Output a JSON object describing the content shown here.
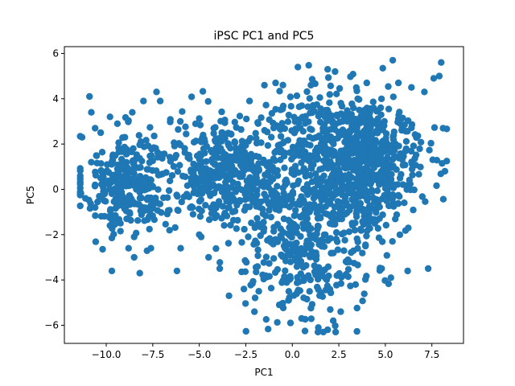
{
  "chart_data": {
    "type": "scatter",
    "title": "iPSC PC1 and PC5",
    "xlabel": "PC1",
    "ylabel": "PC5",
    "xlim": [
      -12.25,
      9.2
    ],
    "ylim": [
      -6.8,
      6.3
    ],
    "xticks": [
      -10.0,
      -7.5,
      -5.0,
      -2.5,
      0.0,
      2.5,
      5.0,
      7.5
    ],
    "xtick_labels": [
      "−10.0",
      "−7.5",
      "−5.0",
      "−2.5",
      "0.0",
      "2.5",
      "5.0",
      "7.5"
    ],
    "yticks": [
      -6,
      -4,
      -2,
      0,
      2,
      4,
      6
    ],
    "ytick_labels": [
      "−6",
      "−4",
      "−2",
      "0",
      "2",
      "4",
      "6"
    ],
    "grid": false,
    "color": "#1f77b4",
    "n_points": 2000,
    "clusters": [
      {
        "cx": -8.8,
        "cy": 0.2,
        "sx": 1.2,
        "sy": 1.1,
        "weight": 0.16
      },
      {
        "cx": -3.8,
        "cy": 1.0,
        "sx": 1.5,
        "sy": 1.1,
        "weight": 0.16
      },
      {
        "cx": -0.8,
        "cy": 0.0,
        "sx": 2.0,
        "sy": 1.3,
        "weight": 0.14
      },
      {
        "cx": 0.8,
        "cy": -3.3,
        "sx": 1.5,
        "sy": 1.3,
        "weight": 0.12
      },
      {
        "cx": 3.8,
        "cy": 0.7,
        "sx": 1.6,
        "sy": 1.4,
        "weight": 0.3
      },
      {
        "cx": 2.2,
        "cy": 2.4,
        "sx": 2.2,
        "sy": 1.2,
        "weight": 0.12
      }
    ],
    "sample_points": [
      [
        -11.3,
        2.3
      ],
      [
        -10.9,
        4.1
      ],
      [
        -10.8,
        3.4
      ],
      [
        -10.8,
        1.2
      ],
      [
        -10.6,
        2.7
      ],
      [
        -10.3,
        2.5
      ],
      [
        -9.8,
        3.2
      ],
      [
        -9.4,
        2.9
      ],
      [
        -9.0,
        2.3
      ],
      [
        -8.6,
        3.4
      ],
      [
        -8.0,
        3.9
      ],
      [
        -7.3,
        4.3
      ],
      [
        -7.1,
        3.9
      ],
      [
        -8.5,
        -3.0
      ],
      [
        -8.2,
        -3.7
      ],
      [
        -7.6,
        -2.6
      ],
      [
        -6.2,
        -3.6
      ],
      [
        -4.9,
        -2.1
      ],
      [
        -4.5,
        -3.0
      ],
      [
        -3.9,
        -3.5
      ],
      [
        -2.3,
        3.9
      ],
      [
        -1.5,
        4.6
      ],
      [
        -0.9,
        4.7
      ],
      [
        0.3,
        5.4
      ],
      [
        1.0,
        4.6
      ],
      [
        1.9,
        5.3
      ],
      [
        2.3,
        5.2
      ],
      [
        3.4,
        3.1
      ],
      [
        4.0,
        4.7
      ],
      [
        5.4,
        5.7
      ],
      [
        5.7,
        4.7
      ],
      [
        6.4,
        4.5
      ],
      [
        7.1,
        4.3
      ],
      [
        7.6,
        4.9
      ],
      [
        8.0,
        5.6
      ],
      [
        7.9,
        5.0
      ],
      [
        8.1,
        2.7
      ],
      [
        8.2,
        0.8
      ],
      [
        7.3,
        -3.5
      ],
      [
        6.2,
        -3.6
      ],
      [
        5.3,
        -3.9
      ],
      [
        4.8,
        -3.5
      ],
      [
        3.4,
        -4.2
      ],
      [
        2.6,
        -5.4
      ],
      [
        2.2,
        -5.8
      ],
      [
        1.9,
        -6.2
      ],
      [
        1.4,
        -6.1
      ],
      [
        0.5,
        -5.7
      ],
      [
        -0.1,
        -5.9
      ],
      [
        -0.7,
        -5.1
      ],
      [
        -1.8,
        -4.5
      ],
      [
        -2.6,
        -4.4
      ],
      [
        -3.4,
        -4.7
      ],
      [
        -5.0,
        -2.0
      ],
      [
        -9.7,
        -3.6
      ],
      [
        -9.8,
        -1.6
      ],
      [
        -10.6,
        -0.8
      ],
      [
        -10.3,
        0.5
      ],
      [
        -6.0,
        -2.6
      ],
      [
        -8.8,
        -2.6
      ]
    ]
  }
}
